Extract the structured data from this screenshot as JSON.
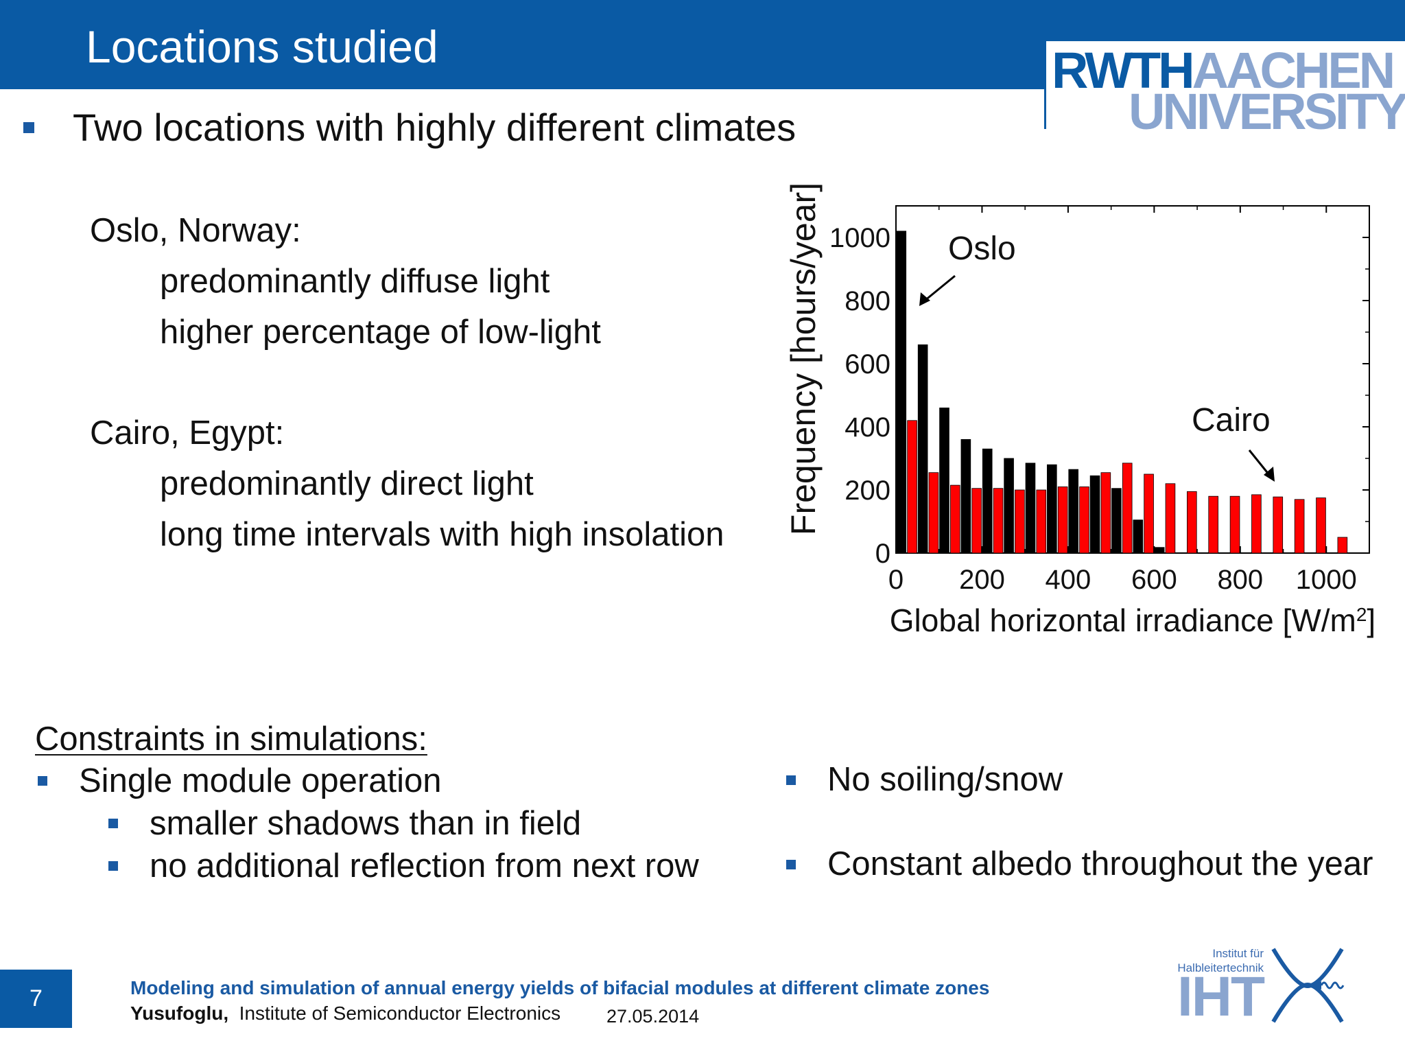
{
  "header": {
    "title": "Locations studied",
    "logo_text": "RWTHAACHEN UNIVERSITY"
  },
  "intro": {
    "bullet": "Two locations with highly different climates"
  },
  "locations": [
    {
      "name": "Oslo, Norway:",
      "details": [
        "predominantly diffuse light",
        "higher percentage of low-light"
      ]
    },
    {
      "name": "Cairo, Egypt:",
      "details": [
        "predominantly direct light",
        "long time intervals with high insolation"
      ]
    }
  ],
  "constraints": {
    "heading": "Constraints in simulations:",
    "left": [
      {
        "text": "Single module operation",
        "sub": [
          "smaller shadows than in field",
          "no additional reflection from next row"
        ]
      }
    ],
    "right": [
      "No soiling/snow",
      "Constant albedo throughout the year"
    ]
  },
  "chart_data": {
    "type": "bar",
    "xlabel": "Global horizontal irradiance [W/m",
    "xlabel_sup": "2",
    "xlabel_end": "]",
    "ylabel": "Frequency [hours/year]",
    "xlim": [
      0,
      1100
    ],
    "ylim": [
      0,
      1100
    ],
    "xticks": [
      0,
      200,
      400,
      600,
      800,
      1000
    ],
    "yticks": [
      0,
      200,
      400,
      600,
      800,
      1000
    ],
    "bin_centers": [
      25,
      75,
      125,
      175,
      225,
      275,
      325,
      375,
      425,
      475,
      525,
      575,
      625,
      675,
      725,
      775,
      825,
      875,
      925,
      975,
      1025
    ],
    "series": [
      {
        "name": "Oslo",
        "color": "#000000",
        "values": [
          1020,
          660,
          460,
          360,
          330,
          300,
          285,
          280,
          265,
          245,
          205,
          105,
          18,
          0,
          0,
          0,
          0,
          0,
          0,
          0,
          0
        ]
      },
      {
        "name": "Cairo",
        "color": "#ff0000",
        "values": [
          420,
          255,
          215,
          205,
          205,
          200,
          200,
          210,
          210,
          255,
          285,
          250,
          220,
          195,
          180,
          180,
          185,
          178,
          170,
          175,
          50
        ]
      }
    ],
    "annotations": [
      {
        "text": "Oslo"
      },
      {
        "text": "Cairo"
      }
    ]
  },
  "footer": {
    "page_number": "7",
    "title": "Modeling and simulation of annual energy yields of bifacial modules at different climate zones",
    "author": "Yusufoglu,",
    "institute": "Institute of Semiconductor Electronics",
    "date": "27.05.2014",
    "iht_institute": "Institut für Halbleitertechnik",
    "iht_letters": "IHT"
  }
}
